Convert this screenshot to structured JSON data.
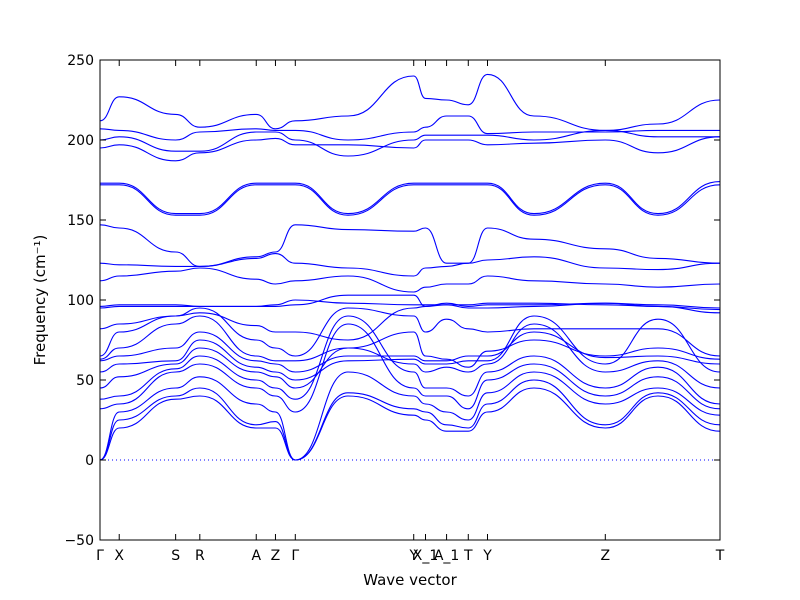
{
  "chart_data": {
    "type": "line",
    "xlabel": "Wave vector",
    "ylabel": "Frequency (cm⁻¹)",
    "ylim": [
      -50,
      250
    ],
    "yticks": [
      -50,
      0,
      50,
      100,
      150,
      200,
      250
    ],
    "xlim": [
      0,
      1.0
    ],
    "x_ticks": [
      {
        "label": "Γ",
        "x": 0.0
      },
      {
        "label": "X",
        "x": 0.031
      },
      {
        "label": "S",
        "x": 0.122
      },
      {
        "label": "R",
        "x": 0.161
      },
      {
        "label": "A",
        "x": 0.252
      },
      {
        "label": "Z",
        "x": 0.283
      },
      {
        "label": "Γ",
        "x": 0.315
      },
      {
        "label": "Y",
        "x": 0.506
      },
      {
        "label": "X_1",
        "x": 0.525
      },
      {
        "label": "A_1",
        "x": 0.559
      },
      {
        "label": "T",
        "x": 0.594
      },
      {
        "label": "Y",
        "x": 0.625
      },
      {
        "label": "Z",
        "x": 0.815
      },
      {
        "label": "T",
        "x": 1.0
      }
    ],
    "zero_line": 0,
    "line_color": "#0000ff",
    "band_nodes": [
      0.0,
      0.031,
      0.122,
      0.161,
      0.252,
      0.283,
      0.315,
      0.4,
      0.506,
      0.525,
      0.559,
      0.594,
      0.625,
      0.7,
      0.815,
      0.9,
      1.0
    ],
    "series": [
      {
        "values": [
          0,
          20,
          38,
          40,
          20,
          20,
          0,
          40,
          28,
          25,
          18,
          18,
          30,
          45,
          20,
          40,
          18
        ]
      },
      {
        "values": [
          0,
          25,
          40,
          45,
          22,
          24,
          0,
          42,
          32,
          30,
          22,
          20,
          35,
          50,
          22,
          42,
          22
        ]
      },
      {
        "values": [
          0,
          30,
          45,
          52,
          35,
          30,
          0,
          55,
          40,
          35,
          30,
          25,
          42,
          55,
          35,
          45,
          28
        ]
      },
      {
        "values": [
          32,
          35,
          55,
          60,
          45,
          40,
          30,
          85,
          45,
          40,
          40,
          32,
          50,
          60,
          40,
          52,
          32
        ]
      },
      {
        "values": [
          38,
          40,
          57,
          65,
          50,
          45,
          38,
          90,
          55,
          45,
          45,
          40,
          55,
          65,
          45,
          58,
          35
        ]
      },
      {
        "values": [
          45,
          52,
          60,
          70,
          55,
          52,
          45,
          70,
          60,
          55,
          58,
          55,
          60,
          85,
          55,
          62,
          45
        ]
      },
      {
        "values": [
          55,
          60,
          62,
          75,
          58,
          55,
          50,
          62,
          63,
          60,
          60,
          62,
          62,
          90,
          60,
          88,
          55
        ]
      },
      {
        "values": [
          62,
          65,
          70,
          80,
          62,
          60,
          55,
          65,
          65,
          62,
          62,
          65,
          65,
          80,
          64,
          65,
          60
        ]
      },
      {
        "values": [
          63,
          70,
          85,
          90,
          65,
          62,
          62,
          70,
          80,
          65,
          63,
          58,
          68,
          75,
          65,
          70,
          63
        ]
      },
      {
        "values": [
          65,
          80,
          90,
          95,
          75,
          70,
          65,
          95,
          90,
          80,
          88,
          82,
          80,
          82,
          82,
          82,
          65
        ]
      },
      {
        "values": [
          82,
          85,
          90,
          92,
          84,
          80,
          80,
          75,
          95,
          96,
          97,
          95,
          95,
          96,
          98,
          96,
          92
        ]
      },
      {
        "values": [
          95,
          96,
          96,
          96,
          96,
          96,
          97,
          103,
          103,
          96,
          98,
          96,
          97,
          97,
          98,
          97,
          95
        ]
      },
      {
        "values": [
          96,
          97,
          97,
          96,
          96,
          97,
          100,
          98,
          97,
          97,
          97,
          97,
          98,
          98,
          97,
          96,
          94
        ]
      },
      {
        "values": [
          112,
          115,
          118,
          120,
          113,
          110,
          112,
          115,
          105,
          108,
          110,
          110,
          115,
          112,
          110,
          108,
          110
        ]
      },
      {
        "values": [
          123,
          122,
          121,
          121,
          126,
          129,
          123,
          120,
          115,
          120,
          121,
          123,
          125,
          127,
          120,
          119,
          123
        ]
      },
      {
        "values": [
          147,
          145,
          130,
          121,
          127,
          130,
          147,
          144,
          143,
          145,
          123,
          123,
          145,
          138,
          132,
          126,
          123
        ]
      },
      {
        "values": [
          172,
          172,
          153,
          153,
          172,
          172,
          172,
          153,
          172,
          172,
          172,
          172,
          172,
          153,
          172,
          153,
          172
        ]
      },
      {
        "values": [
          173,
          173,
          154,
          154,
          173,
          173,
          173,
          154,
          173,
          173,
          173,
          173,
          173,
          154,
          173,
          154,
          174
        ]
      },
      {
        "values": [
          195,
          197,
          187,
          192,
          200,
          201,
          197,
          197,
          195,
          200,
          200,
          200,
          197,
          198,
          200,
          192,
          202
        ]
      },
      {
        "values": [
          200,
          202,
          193,
          193,
          205,
          205,
          200,
          190,
          200,
          203,
          203,
          203,
          203,
          200,
          206,
          202,
          202
        ]
      },
      {
        "values": [
          207,
          206,
          200,
          205,
          207,
          206,
          206,
          200,
          205,
          208,
          215,
          215,
          204,
          205,
          205,
          206,
          206
        ]
      },
      {
        "values": [
          212,
          227,
          216,
          208,
          216,
          207,
          212,
          215,
          240,
          226,
          225,
          222,
          241,
          215,
          206,
          210,
          225
        ]
      }
    ]
  }
}
